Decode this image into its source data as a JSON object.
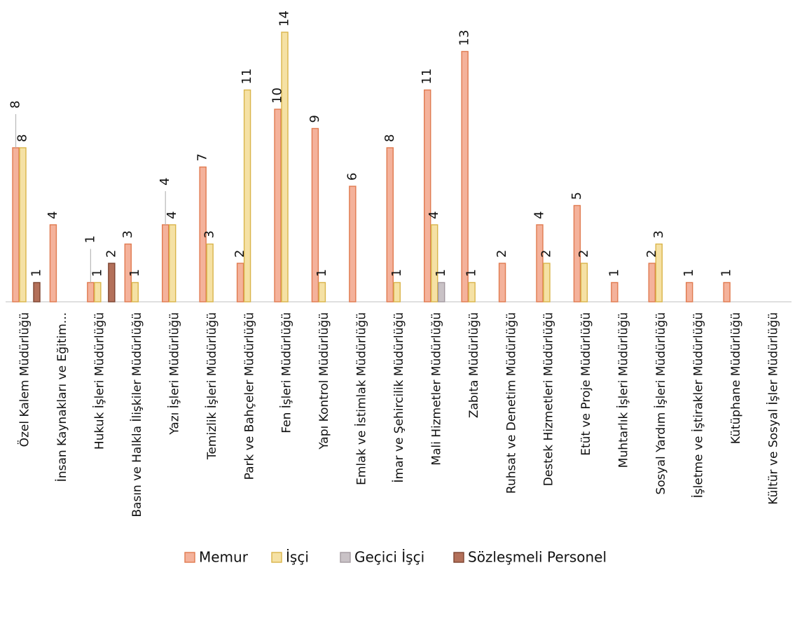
{
  "chart_data": {
    "type": "bar",
    "title": "",
    "xlabel": "",
    "ylabel": "",
    "ylim": [
      0,
      15
    ],
    "grid": false,
    "legend_position": "bottom",
    "categories": [
      "Özel Kalem Müdürlüğü",
      "İnsan Kaynakları ve Eğitim...",
      "Hukuk İşleri Müdürlüğü",
      "Basın ve Halkla İlişkiler Müdürlüğü",
      "Yazı İşleri Müdürlüğü",
      "Temizlik İşleri Müdürlüğü",
      "Park ve Bahçeler Müdürlüğü",
      "Fen İşleri Müdürlüğü",
      "Yapı Kontrol Müdürlüğü",
      "Emlak ve İstimlak Müdürlüğü",
      "İmar ve Şehircilik Müdürlüğü",
      "Mali Hizmetler Müdürlüğü",
      "Zabıta Müdürlüğü",
      "Ruhsat ve Denetim Müdürlüğü",
      "Destek Hizmetleri Müdürlüğü",
      "Etüt ve Proje Müdürlüğü",
      "Muhtarlık İşleri Müdürlüğü",
      "Sosyal Yardım İşleri Müdürlüğü",
      "İşletme ve İştirakler Müdürlüğü",
      "Kütüphane Müdürlüğü",
      "Kültür ve Sosyal İşler Müdürlüğü"
    ],
    "series": [
      {
        "name": "Memur",
        "color": "#f4b29b",
        "stroke": "#e07a4f",
        "values": [
          8,
          4,
          1,
          3,
          4,
          7,
          2,
          10,
          9,
          6,
          8,
          11,
          13,
          2,
          4,
          5,
          1,
          2,
          1,
          1,
          null
        ]
      },
      {
        "name": "İşçi",
        "color": "#f5e1a4",
        "stroke": "#d9b44a",
        "values": [
          8,
          null,
          1,
          1,
          4,
          3,
          11,
          14,
          1,
          null,
          1,
          4,
          1,
          null,
          2,
          2,
          null,
          3,
          null,
          null,
          null
        ]
      },
      {
        "name": "Geçici İşçi",
        "color": "#c9c2c6",
        "stroke": "#a49aa0",
        "values": [
          null,
          null,
          null,
          null,
          null,
          null,
          null,
          null,
          null,
          null,
          null,
          1,
          null,
          null,
          null,
          null,
          null,
          null,
          null,
          null,
          null
        ]
      },
      {
        "name": "Sözleşmeli Personel",
        "color": "#b3705a",
        "stroke": "#7d4431",
        "values": [
          1,
          null,
          2,
          null,
          null,
          null,
          null,
          null,
          null,
          null,
          null,
          null,
          null,
          null,
          null,
          null,
          null,
          null,
          null,
          null,
          null
        ]
      }
    ],
    "label_leaders": [
      {
        "category": 0,
        "series": 0
      },
      {
        "category": 2,
        "series": 0
      },
      {
        "category": 4,
        "series": 0
      }
    ]
  }
}
